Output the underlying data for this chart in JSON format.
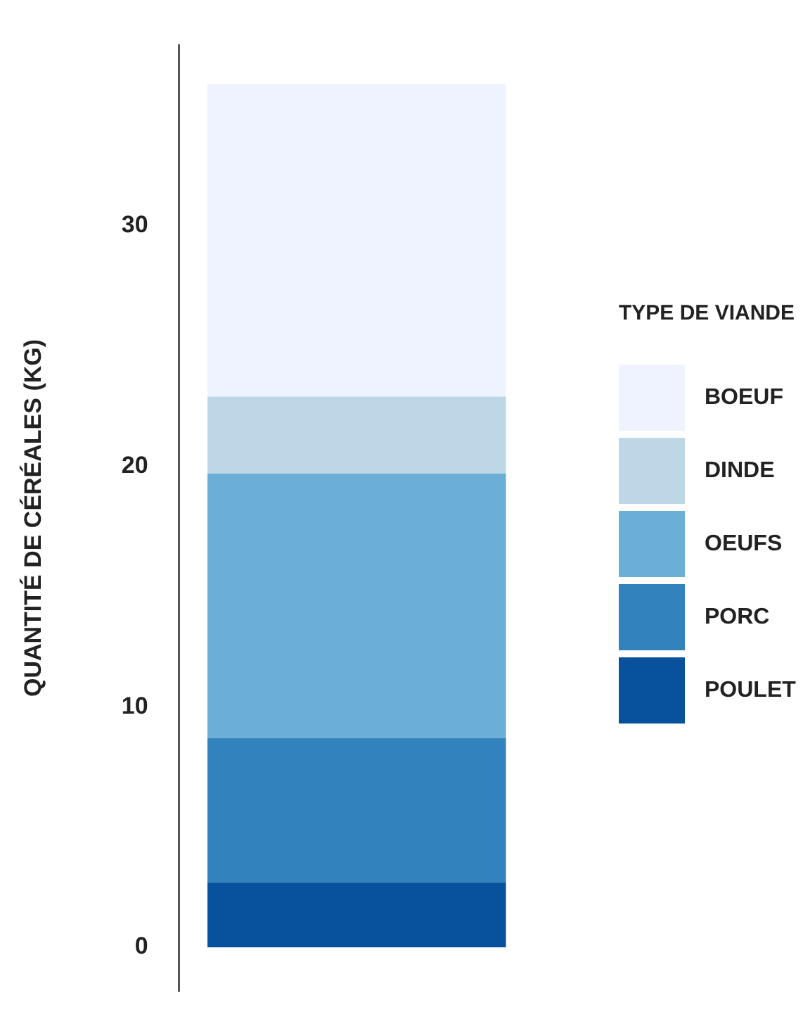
{
  "chart_data": {
    "type": "bar",
    "stacked": true,
    "ylabel": "QUANTITÉ DE CÉRÉALES (KG)",
    "legend_title": "TYPE DE VIANDE",
    "legend": "right",
    "categories": [
      null
    ],
    "series": [
      {
        "name": "POULET",
        "color": "#08519c",
        "values": [
          2.7
        ]
      },
      {
        "name": "PORC",
        "color": "#3182bd",
        "values": [
          6.0
        ]
      },
      {
        "name": "OEUFS",
        "color": "#6baed6",
        "values": [
          11.0
        ]
      },
      {
        "name": "DINDE",
        "color": "#bdd7e7",
        "values": [
          3.2
        ]
      },
      {
        "name": "BOEUF",
        "color": "#eff3ff",
        "values": [
          13.0
        ]
      }
    ],
    "ylim": [
      -1.8,
      37.5
    ],
    "yticks": [
      0,
      10,
      20,
      30
    ],
    "grid": false,
    "tick_labels": "y"
  }
}
